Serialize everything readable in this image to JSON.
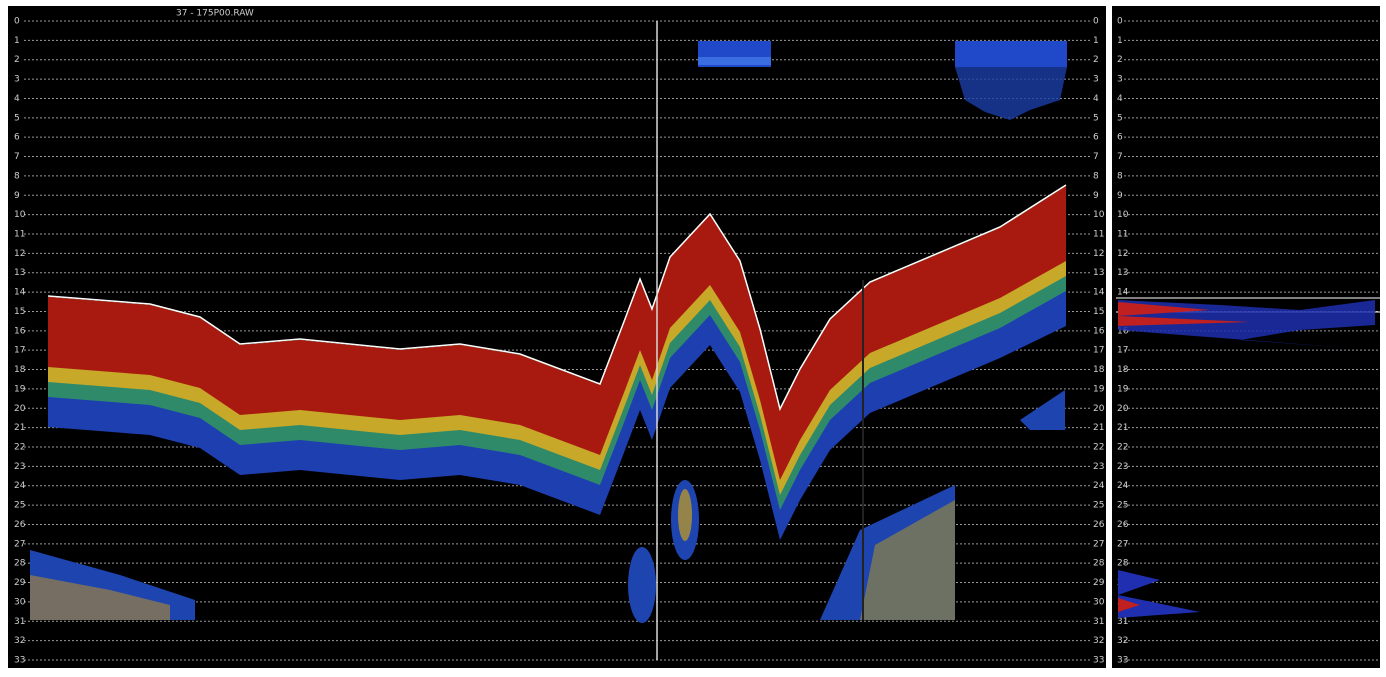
{
  "file_name": "37 - 175P00.RAW",
  "depth_scale": [
    0,
    1,
    2,
    3,
    4,
    5,
    6,
    7,
    8,
    9,
    10,
    11,
    12,
    13,
    14,
    15,
    16,
    17,
    18,
    19,
    20,
    21,
    22,
    23,
    24,
    25,
    26,
    27,
    28,
    29,
    30,
    31,
    32,
    33
  ]
}
